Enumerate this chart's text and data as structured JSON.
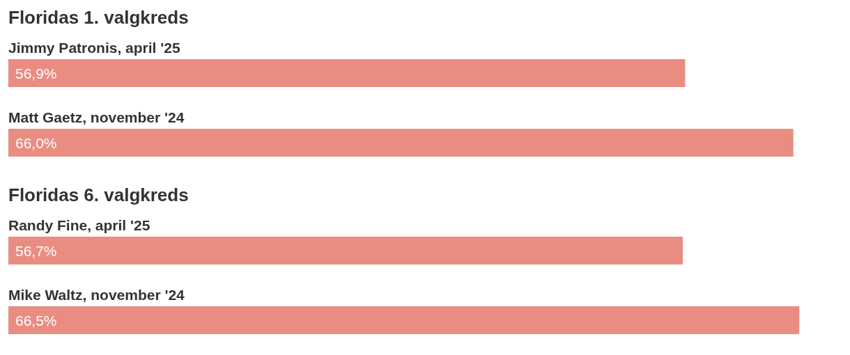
{
  "chart_data": [
    {
      "type": "bar",
      "orientation": "horizontal",
      "title": "Floridas 1. valgkreds",
      "categories": [
        "Jimmy Patronis, april '25",
        "Matt Gaetz, november '24"
      ],
      "values": [
        56.9,
        66.0
      ],
      "value_labels": [
        "56,9%",
        "66,0%"
      ],
      "color": "#e98c82",
      "tick_labels": "y"
    },
    {
      "type": "bar",
      "orientation": "horizontal",
      "title": "Floridas 6. valgkreds",
      "categories": [
        "Randy Fine, april '25",
        "Mike Waltz, november '24"
      ],
      "values": [
        56.7,
        66.5
      ],
      "value_labels": [
        "56,7%",
        "66,5%"
      ],
      "color": "#e98c82",
      "tick_labels": "y"
    }
  ]
}
